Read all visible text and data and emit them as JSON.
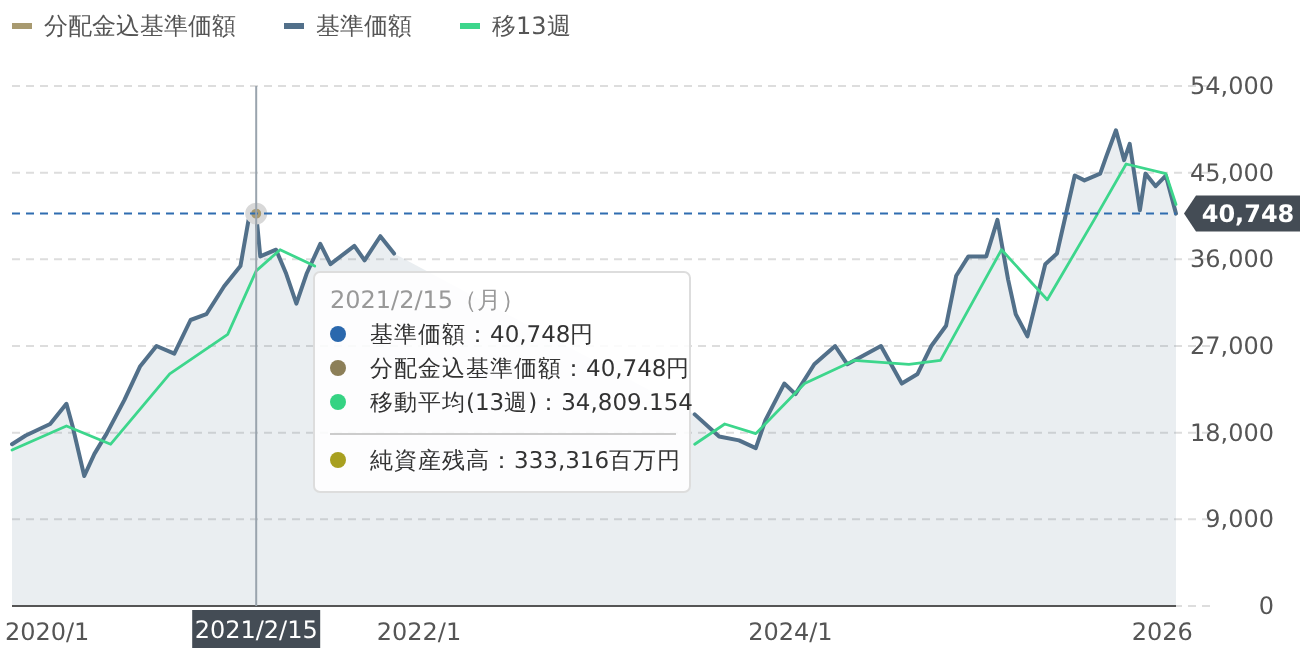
{
  "chart_data": {
    "type": "line",
    "legend": "top left",
    "grid": "y",
    "marker": "none",
    "line_style": "solid",
    "xlim": [
      "2019-10-24",
      "2026-01-28"
    ],
    "xticks": [
      {
        "value": "2020-01-01",
        "label": "2020/1"
      },
      {
        "value": "2022-01-01",
        "label": "2022/1"
      },
      {
        "value": "2024-01-01",
        "label": "2024/1"
      },
      {
        "value": "2026-01-01",
        "label": "2026"
      }
    ],
    "ylim": [
      0,
      54000
    ],
    "yticks": [
      {
        "value": 0,
        "label": "0"
      },
      {
        "value": 9000,
        "label": "9,000"
      },
      {
        "value": 18000,
        "label": "18,000"
      },
      {
        "value": 27000,
        "label": "27,000"
      },
      {
        "value": 36000,
        "label": "36,000"
      },
      {
        "value": 45000,
        "label": "45,000"
      },
      {
        "value": 54000,
        "label": "54,000"
      }
    ],
    "series": [
      {
        "name": "分配金込基準価額",
        "type": "scatter",
        "marker": "circle",
        "color": "#a89a70",
        "x": [
          "2021-02-15"
        ],
        "values": [
          40748
        ]
      },
      {
        "name": "基準価額",
        "type": "area",
        "color": "#52708a",
        "x": [
          "2019-10-24",
          "2019-11-20",
          "2020-01-07",
          "2020-02-08",
          "2020-02-20",
          "2020-03-14",
          "2020-04-03",
          "2020-04-27",
          "2020-06-01",
          "2020-07-02",
          "2020-08-03",
          "2020-09-07",
          "2020-10-09",
          "2020-11-09",
          "2020-12-14",
          "2021-01-15",
          "2021-01-31",
          "2021-02-15",
          "2021-02-23",
          "2021-03-26",
          "2021-04-15",
          "2021-05-05",
          "2021-05-25",
          "2021-06-21",
          "2021-07-11",
          "2021-08-27",
          "2021-09-16",
          "2021-10-17",
          "2021-11-13",
          "2022-01-05",
          "2022-03-05",
          "2022-04-30",
          "2022-06-08",
          "2022-08-08",
          "2022-10-05",
          "2022-12-20",
          "2023-03-10",
          "2023-05-27",
          "2023-06-27",
          "2023-08-14",
          "2023-09-22",
          "2023-10-25",
          "2023-11-13",
          "2023-12-20",
          "2024-01-11",
          "2024-02-17",
          "2024-03-29",
          "2024-04-22",
          "2024-06-27",
          "2024-08-07",
          "2024-09-07",
          "2024-10-04",
          "2024-11-02",
          "2024-11-22",
          "2024-12-16",
          "2025-01-20",
          "2025-02-11",
          "2025-03-04",
          "2025-03-19",
          "2025-04-11",
          "2025-05-16",
          "2025-06-08",
          "2025-07-13",
          "2025-08-01",
          "2025-09-01",
          "2025-09-13",
          "2025-10-02",
          "2025-10-18",
          "2025-10-29",
          "2025-11-18",
          "2025-11-29",
          "2025-12-19",
          "2026-01-08",
          "2026-01-28"
        ],
        "values": [
          16800,
          17700,
          18900,
          21000,
          18700,
          13500,
          15800,
          17900,
          21400,
          24900,
          27000,
          26200,
          29700,
          30300,
          33200,
          35300,
          40100,
          40748,
          36300,
          37000,
          34500,
          31400,
          34500,
          37600,
          35500,
          37400,
          35900,
          38400,
          36600,
          null,
          null,
          null,
          null,
          null,
          null,
          null,
          null,
          null,
          19900,
          17600,
          17200,
          16400,
          19300,
          23100,
          22000,
          25100,
          27000,
          25100,
          27000,
          23100,
          24100,
          27000,
          29100,
          34300,
          36300,
          36300,
          40100,
          33900,
          30300,
          28000,
          35500,
          36600,
          44700,
          44200,
          44900,
          46700,
          49400,
          46300,
          48000,
          41100,
          44900,
          43600,
          44700,
          40748
        ]
      },
      {
        "name": "移13週",
        "color": "#3dd68c",
        "x": [
          "2019-10-24",
          "2020-02-08",
          "2020-05-05",
          "2020-08-29",
          "2020-12-21",
          "2021-02-15",
          "2021-04-03",
          "2021-06-10",
          "2021-11-24",
          "2022-03-13",
          "2022-07-10",
          "2022-12-20",
          "2023-06-27",
          "2023-08-25",
          "2023-10-25",
          "2024-01-29",
          "2024-05-05",
          "2024-08-21",
          "2024-10-22",
          "2025-02-19",
          "2025-05-20",
          "2025-08-20",
          "2025-10-22",
          "2026-01-08",
          "2026-01-28"
        ],
        "values": [
          16200,
          18700,
          16800,
          24100,
          28200,
          34800,
          37000,
          35300,
          null,
          null,
          null,
          null,
          16800,
          18900,
          17900,
          23100,
          25500,
          25100,
          25500,
          37000,
          31800,
          40100,
          45900,
          44900,
          41700
        ]
      }
    ],
    "ref_lines": [
      {
        "axis": "y",
        "value": 40748,
        "label": "40,748",
        "color": "#2f6db0",
        "line_style": "dashed"
      },
      {
        "axis": "x",
        "value": "2021-02-15",
        "label": "2021/2/15",
        "color": "#9aa4ad",
        "line_style": "solid"
      }
    ],
    "annotations": [
      "2021/2/15（月）",
      "基準価額：40,748円",
      "分配金込基準価額：40,748円",
      "移動平均(13週)：34,809.154",
      "純資産残高：333,316百万円"
    ]
  }
}
